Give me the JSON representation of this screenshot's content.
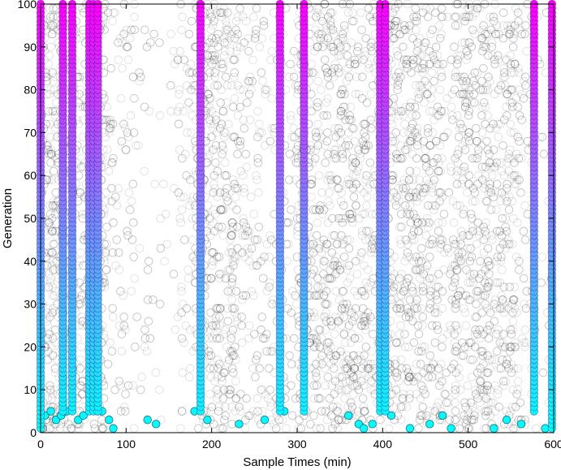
{
  "chart_data": {
    "type": "scatter",
    "xlabel": "Sample Times (min)",
    "ylabel": "Generation",
    "xlim": [
      0,
      600
    ],
    "ylim": [
      0,
      100
    ],
    "x_ticks": [
      0,
      100,
      200,
      300,
      400,
      500,
      600
    ],
    "y_ticks": [
      0,
      10,
      20,
      30,
      40,
      50,
      60,
      70,
      80,
      90,
      100
    ],
    "grid": false,
    "legend": "none",
    "background_points": {
      "description_marker": "open circles, translucent gray",
      "color": "#000000",
      "y_range": [
        1,
        100
      ],
      "dense_x_bands": [
        [
          0,
          75
        ],
        [
          180,
          230
        ],
        [
          300,
          470
        ],
        [
          480,
          560
        ]
      ],
      "sparse_x_bands": [
        [
          110,
          160
        ],
        [
          570,
          600
        ]
      ]
    },
    "highlighted_series": [
      {
        "x": 0,
        "y_start": 1,
        "y_end": 100
      },
      {
        "x": 26,
        "y_start": 5,
        "y_end": 100
      },
      {
        "x": 37,
        "y_start": 5,
        "y_end": 100
      },
      {
        "x": 57,
        "y_start": 5,
        "y_end": 100
      },
      {
        "x": 62,
        "y_start": 5,
        "y_end": 100
      },
      {
        "x": 67,
        "y_start": 5,
        "y_end": 100
      },
      {
        "x": 187,
        "y_start": 5,
        "y_end": 100
      },
      {
        "x": 280,
        "y_start": 5,
        "y_end": 100
      },
      {
        "x": 308,
        "y_start": 5,
        "y_end": 100
      },
      {
        "x": 397,
        "y_start": 5,
        "y_end": 100
      },
      {
        "x": 403,
        "y_start": 5,
        "y_end": 100
      },
      {
        "x": 577,
        "y_start": 5,
        "y_end": 100
      },
      {
        "x": 598,
        "y_start": 1,
        "y_end": 100
      }
    ],
    "highlighted_gradient": {
      "low": "#00ffff",
      "mid": "#7a86ff",
      "high": "#ff00ff"
    },
    "bottom_scatter": [
      {
        "x": 5,
        "y": 4
      },
      {
        "x": 12,
        "y": 5
      },
      {
        "x": 18,
        "y": 3
      },
      {
        "x": 24,
        "y": 4
      },
      {
        "x": 30,
        "y": 5
      },
      {
        "x": 44,
        "y": 3
      },
      {
        "x": 50,
        "y": 4
      },
      {
        "x": 72,
        "y": 5
      },
      {
        "x": 80,
        "y": 3
      },
      {
        "x": 85,
        "y": 1
      },
      {
        "x": 125,
        "y": 3
      },
      {
        "x": 135,
        "y": 2
      },
      {
        "x": 180,
        "y": 5
      },
      {
        "x": 195,
        "y": 3
      },
      {
        "x": 232,
        "y": 2
      },
      {
        "x": 262,
        "y": 3
      },
      {
        "x": 285,
        "y": 5
      },
      {
        "x": 360,
        "y": 4
      },
      {
        "x": 372,
        "y": 2
      },
      {
        "x": 378,
        "y": 1
      },
      {
        "x": 388,
        "y": 2
      },
      {
        "x": 410,
        "y": 4
      },
      {
        "x": 432,
        "y": 1
      },
      {
        "x": 455,
        "y": 2
      },
      {
        "x": 470,
        "y": 4
      },
      {
        "x": 480,
        "y": 1
      },
      {
        "x": 530,
        "y": 1
      },
      {
        "x": 545,
        "y": 3
      },
      {
        "x": 562,
        "y": 2
      },
      {
        "x": 590,
        "y": 1
      }
    ]
  }
}
